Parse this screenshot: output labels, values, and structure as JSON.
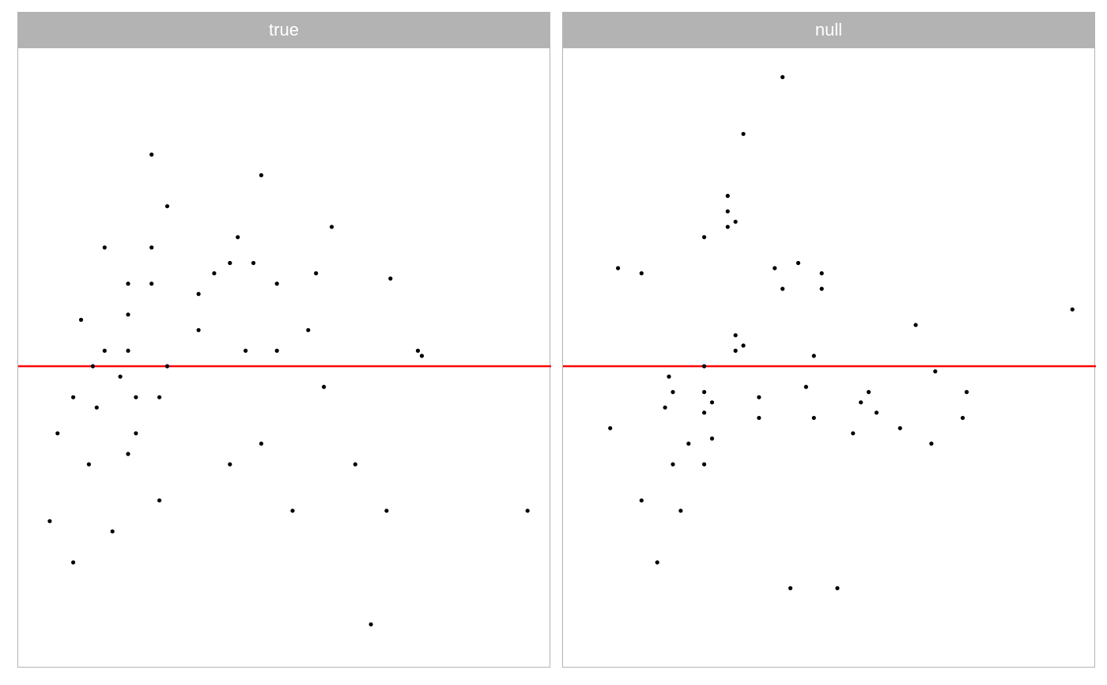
{
  "chart_data": {
    "type": "scatter",
    "layout": "facet",
    "x_range": [
      0,
      32
    ],
    "y_range": [
      -0.57,
      0.57
    ],
    "reference_line": {
      "y": 0,
      "color": "#ff0000"
    },
    "point_color": "#000000",
    "strip_color": "#b3b3b3",
    "panels": [
      {
        "label": "true",
        "points": [
          [
            0.5,
            -0.3
          ],
          [
            1,
            -0.13
          ],
          [
            2,
            -0.38
          ],
          [
            2,
            -0.06
          ],
          [
            2.5,
            0.09
          ],
          [
            3,
            -0.19
          ],
          [
            3.25,
            0.0
          ],
          [
            3.5,
            -0.08
          ],
          [
            4,
            0.23
          ],
          [
            4,
            0.03
          ],
          [
            4.5,
            -0.32
          ],
          [
            5,
            -0.02
          ],
          [
            5.5,
            0.16
          ],
          [
            5.5,
            0.1
          ],
          [
            5.5,
            0.03
          ],
          [
            5.5,
            -0.17
          ],
          [
            6,
            -0.06
          ],
          [
            6,
            -0.13
          ],
          [
            7,
            0.41
          ],
          [
            7,
            0.23
          ],
          [
            7,
            0.16
          ],
          [
            7.5,
            -0.06
          ],
          [
            7.5,
            -0.26
          ],
          [
            8,
            0.0
          ],
          [
            8,
            0.31
          ],
          [
            10,
            0.14
          ],
          [
            10,
            0.07
          ],
          [
            11,
            0.18
          ],
          [
            12,
            0.2
          ],
          [
            12,
            -0.19
          ],
          [
            12.5,
            0.25
          ],
          [
            13,
            0.03
          ],
          [
            13.5,
            0.2
          ],
          [
            14,
            0.37
          ],
          [
            14,
            -0.15
          ],
          [
            15,
            0.16
          ],
          [
            15,
            0.03
          ],
          [
            16,
            -0.28
          ],
          [
            17,
            0.07
          ],
          [
            17.5,
            0.18
          ],
          [
            18,
            -0.04
          ],
          [
            18.5,
            0.27
          ],
          [
            20,
            -0.19
          ],
          [
            21,
            -0.5
          ],
          [
            22,
            -0.28
          ],
          [
            22.25,
            0.17
          ],
          [
            24,
            0.03
          ],
          [
            24.25,
            0.02
          ],
          [
            31,
            -0.28
          ]
        ]
      },
      {
        "label": "null",
        "points": [
          [
            1.5,
            -0.12
          ],
          [
            2,
            0.19
          ],
          [
            3.5,
            0.18
          ],
          [
            3.5,
            -0.26
          ],
          [
            4.5,
            -0.38
          ],
          [
            5,
            -0.08
          ],
          [
            5.25,
            -0.02
          ],
          [
            5.5,
            -0.05
          ],
          [
            5.5,
            -0.19
          ],
          [
            6,
            -0.28
          ],
          [
            6.5,
            -0.15
          ],
          [
            7.5,
            -0.05
          ],
          [
            7.5,
            0.25
          ],
          [
            7.5,
            0.0
          ],
          [
            7.5,
            -0.09
          ],
          [
            7.5,
            -0.19
          ],
          [
            8,
            -0.07
          ],
          [
            8,
            -0.14
          ],
          [
            9,
            0.33
          ],
          [
            9,
            0.3
          ],
          [
            9,
            0.27
          ],
          [
            9.5,
            0.28
          ],
          [
            9.5,
            0.06
          ],
          [
            9.5,
            0.03
          ],
          [
            10,
            0.45
          ],
          [
            10,
            0.04
          ],
          [
            11,
            -0.06
          ],
          [
            11,
            -0.1
          ],
          [
            12,
            0.19
          ],
          [
            12.5,
            0.56
          ],
          [
            12.5,
            0.15
          ],
          [
            13,
            -0.43
          ],
          [
            13.5,
            0.2
          ],
          [
            14,
            -0.04
          ],
          [
            14.5,
            0.02
          ],
          [
            14.5,
            -0.1
          ],
          [
            15,
            0.18
          ],
          [
            15,
            0.15
          ],
          [
            16,
            -0.43
          ],
          [
            17,
            -0.13
          ],
          [
            17.5,
            -0.07
          ],
          [
            18,
            -0.05
          ],
          [
            18.5,
            -0.09
          ],
          [
            20,
            -0.12
          ],
          [
            21,
            0.08
          ],
          [
            22,
            -0.15
          ],
          [
            22.25,
            -0.01
          ],
          [
            24,
            -0.1
          ],
          [
            24.25,
            -0.05
          ],
          [
            31,
            0.11
          ]
        ]
      }
    ]
  }
}
